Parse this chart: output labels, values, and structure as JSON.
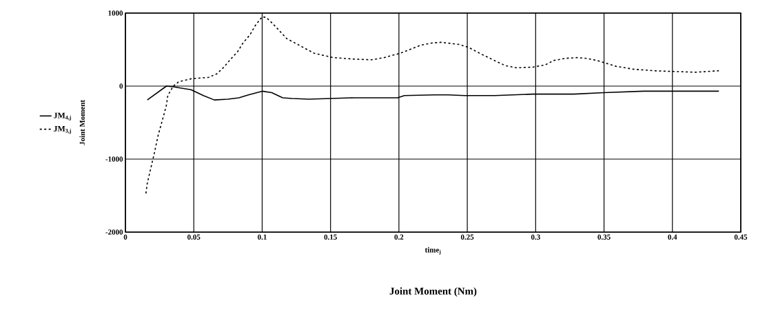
{
  "chart_data": {
    "type": "line",
    "title": "Joint Moment (Nm)",
    "xlabel": "time$_{j}$",
    "ylabel": "Joint Moment",
    "xlim": [
      0,
      0.45
    ],
    "ylim": [
      -2000,
      1000
    ],
    "xticks": [
      0,
      0.05,
      0.1,
      0.15,
      0.2,
      0.25,
      0.3,
      0.35,
      0.4,
      0.45
    ],
    "yticks": [
      -2000,
      -1000,
      0,
      1000
    ],
    "grid": true,
    "legend": "left",
    "marker": "none",
    "series": [
      {
        "name": "JM$_{4,j}$",
        "color": "#000000",
        "line_style": "solid",
        "x": [
          0.016,
          0.03,
          0.035,
          0.048,
          0.057,
          0.065,
          0.075,
          0.083,
          0.09,
          0.1,
          0.107,
          0.115,
          0.122,
          0.134,
          0.15,
          0.167,
          0.184,
          0.199,
          0.204,
          0.226,
          0.236,
          0.248,
          0.27,
          0.298,
          0.328,
          0.35,
          0.379,
          0.401,
          0.434
        ],
        "values": [
          -190,
          0,
          -10,
          -50,
          -130,
          -190,
          -180,
          -160,
          -120,
          -70,
          -90,
          -160,
          -170,
          -180,
          -170,
          -160,
          -160,
          -160,
          -130,
          -120,
          -120,
          -130,
          -130,
          -110,
          -110,
          -90,
          -70,
          -70,
          -70
        ]
      },
      {
        "name": "JM$_{3,j}$",
        "color": "#000000",
        "line_style": "dashed",
        "x": [
          0.015,
          0.016,
          0.021,
          0.024,
          0.028,
          0.03,
          0.031,
          0.035,
          0.039,
          0.048,
          0.061,
          0.067,
          0.072,
          0.077,
          0.082,
          0.086,
          0.091,
          0.095,
          0.1,
          0.103,
          0.108,
          0.113,
          0.118,
          0.125,
          0.138,
          0.145,
          0.152,
          0.167,
          0.18,
          0.189,
          0.201,
          0.216,
          0.224,
          0.231,
          0.244,
          0.251,
          0.259,
          0.271,
          0.278,
          0.286,
          0.298,
          0.307,
          0.313,
          0.322,
          0.33,
          0.337,
          0.345,
          0.352,
          0.359,
          0.372,
          0.387,
          0.401,
          0.417,
          0.434
        ],
        "values": [
          -1470,
          -1330,
          -930,
          -670,
          -400,
          -260,
          -130,
          0,
          60,
          100,
          120,
          170,
          260,
          370,
          470,
          590,
          700,
          830,
          950,
          940,
          850,
          750,
          650,
          580,
          450,
          420,
          390,
          370,
          360,
          390,
          450,
          560,
          590,
          600,
          570,
          530,
          450,
          340,
          280,
          250,
          260,
          290,
          350,
          380,
          390,
          380,
          350,
          310,
          270,
          230,
          210,
          200,
          190,
          210
        ]
      }
    ]
  }
}
